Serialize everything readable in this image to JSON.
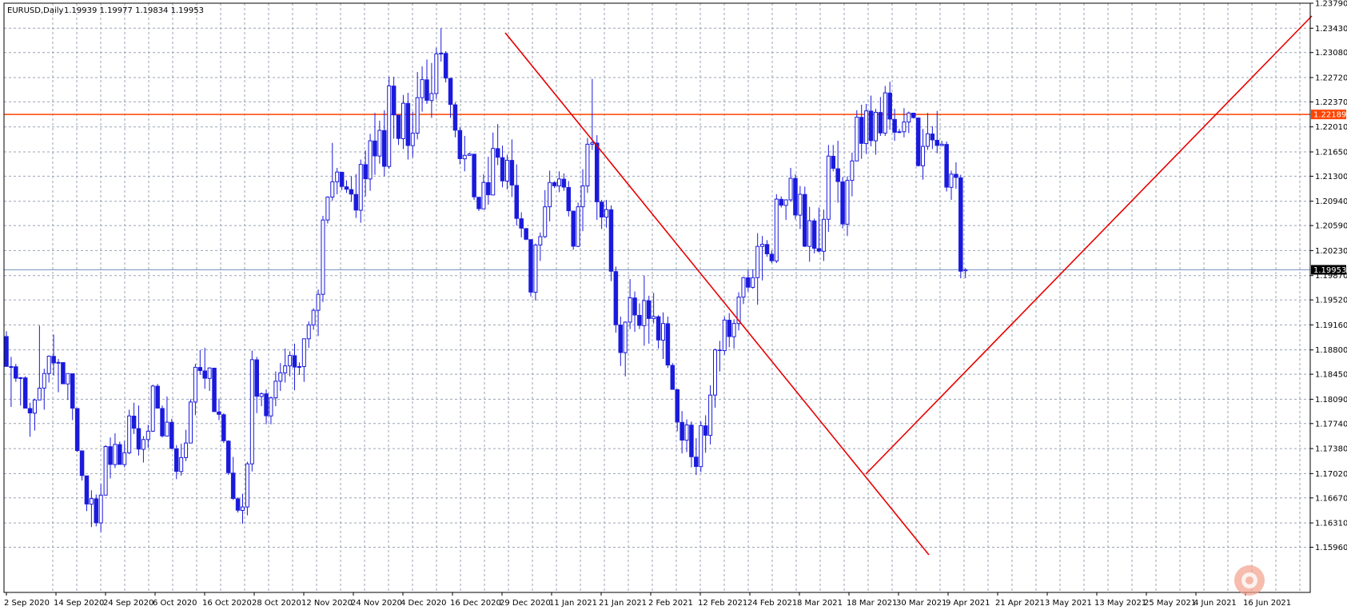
{
  "header": {
    "symbol": "EURUSD,Daily",
    "ohlc": "1.19939 1.19977 1.19834 1.19953"
  },
  "chart_data": {
    "type": "candlestick",
    "ylim": [
      1.1531,
      1.2379
    ],
    "y_ticks": [
      "1.23790",
      "1.23430",
      "1.23080",
      "1.22720",
      "1.22370",
      "1.22010",
      "1.21650",
      "1.21300",
      "1.20940",
      "1.20590",
      "1.20230",
      "1.19870",
      "1.19520",
      "1.19160",
      "1.18800",
      "1.18450",
      "1.18090",
      "1.17740",
      "1.17380",
      "1.17020",
      "1.16670",
      "1.16310",
      "1.15960"
    ],
    "x_ticks": [
      "2 Sep 2020",
      "14 Sep 2020",
      "24 Sep 2020",
      "6 Oct 2020",
      "16 Oct 2020",
      "28 Oct 2020",
      "12 Nov 2020",
      "24 Nov 2020",
      "4 Dec 2020",
      "16 Dec 2020",
      "29 Dec 2020",
      "11 Jan 2021",
      "21 Jan 2021",
      "2 Feb 2021",
      "12 Feb 2021",
      "24 Feb 2021",
      "8 Mar 2021",
      "18 Mar 2021",
      "30 Mar 2021",
      "9 Apr 2021",
      "21 Apr 2021",
      "3 May 2021",
      "13 May 2021",
      "25 May 2021",
      "4 Jun 2021",
      "16 Jun 2021"
    ],
    "current_price": "1.19953",
    "horizontal_line": {
      "price": "1.22189",
      "color": "#ff4400"
    },
    "bid_line_color": "#7a95c2",
    "candle_color": "#1a1adc",
    "trendline_color": "#e80000",
    "grid": true,
    "candles": [
      [
        1.18995,
        1.19069,
        1.1858,
        1.1856
      ],
      [
        1.1856,
        1.187,
        1.1798,
        1.1856
      ],
      [
        1.1856,
        1.186,
        1.1834,
        1.1839
      ],
      [
        1.1839,
        1.1841,
        1.18,
        1.184
      ],
      [
        1.184,
        1.1842,
        1.1796,
        1.1796
      ],
      [
        1.1796,
        1.1804,
        1.1755,
        1.1789
      ],
      [
        1.1789,
        1.181,
        1.1764,
        1.1808
      ],
      [
        1.1808,
        1.1915,
        1.1808,
        1.1825
      ],
      [
        1.1825,
        1.1853,
        1.1794,
        1.1846
      ],
      [
        1.1846,
        1.1872,
        1.1833,
        1.1871
      ],
      [
        1.1871,
        1.1902,
        1.1843,
        1.1861
      ],
      [
        1.1861,
        1.1867,
        1.1819,
        1.1862
      ],
      [
        1.1862,
        1.1862,
        1.1831,
        1.1831
      ],
      [
        1.1831,
        1.1846,
        1.1808,
        1.1846
      ],
      [
        1.1846,
        1.1846,
        1.1779,
        1.1796
      ],
      [
        1.1796,
        1.1796,
        1.1733,
        1.1735
      ],
      [
        1.1735,
        1.1735,
        1.1692,
        1.1699
      ],
      [
        1.1699,
        1.1699,
        1.1648,
        1.1658
      ],
      [
        1.1658,
        1.1678,
        1.1625,
        1.1666
      ],
      [
        1.1666,
        1.1672,
        1.1626,
        1.1631
      ],
      [
        1.1631,
        1.1687,
        1.1618,
        1.1671
      ],
      [
        1.1671,
        1.1743,
        1.1671,
        1.1741
      ],
      [
        1.1741,
        1.1754,
        1.1695,
        1.1715
      ],
      [
        1.1715,
        1.176,
        1.171,
        1.1744
      ],
      [
        1.1744,
        1.1748,
        1.1715,
        1.1715
      ],
      [
        1.1715,
        1.1749,
        1.1711,
        1.1732
      ],
      [
        1.1732,
        1.1794,
        1.173,
        1.1785
      ],
      [
        1.1785,
        1.1804,
        1.1759,
        1.1767
      ],
      [
        1.1767,
        1.18,
        1.1728,
        1.1737
      ],
      [
        1.1737,
        1.1756,
        1.1718,
        1.1751
      ],
      [
        1.1751,
        1.1772,
        1.1739,
        1.1763
      ],
      [
        1.1763,
        1.183,
        1.1762,
        1.1828
      ],
      [
        1.1828,
        1.1831,
        1.1796,
        1.1796
      ],
      [
        1.1796,
        1.18,
        1.1754,
        1.1756
      ],
      [
        1.1756,
        1.1813,
        1.1756,
        1.1776
      ],
      [
        1.1776,
        1.1781,
        1.1737,
        1.1738
      ],
      [
        1.1738,
        1.1743,
        1.1694,
        1.1705
      ],
      [
        1.1705,
        1.1745,
        1.1699,
        1.1725
      ],
      [
        1.1725,
        1.1765,
        1.172,
        1.1746
      ],
      [
        1.1746,
        1.1809,
        1.1746,
        1.1805
      ],
      [
        1.1805,
        1.186,
        1.1786,
        1.1855
      ],
      [
        1.1855,
        1.188,
        1.1844,
        1.185
      ],
      [
        1.185,
        1.1883,
        1.1824,
        1.1839
      ],
      [
        1.1839,
        1.1855,
        1.1821,
        1.1854
      ],
      [
        1.1854,
        1.1854,
        1.1791,
        1.1791
      ],
      [
        1.1791,
        1.181,
        1.1779,
        1.1787
      ],
      [
        1.1787,
        1.1789,
        1.1746,
        1.1749
      ],
      [
        1.1749,
        1.175,
        1.17,
        1.1703
      ],
      [
        1.1703,
        1.1726,
        1.1664,
        1.1666
      ],
      [
        1.1666,
        1.1668,
        1.1646,
        1.1649
      ],
      [
        1.1649,
        1.1673,
        1.163,
        1.1654
      ],
      [
        1.1654,
        1.1719,
        1.1642,
        1.1716
      ],
      [
        1.1716,
        1.1879,
        1.1705,
        1.1866
      ],
      [
        1.1866,
        1.187,
        1.1789,
        1.1813
      ],
      [
        1.1813,
        1.1819,
        1.1799,
        1.1817
      ],
      [
        1.1817,
        1.1823,
        1.1773,
        1.1785
      ],
      [
        1.1785,
        1.1813,
        1.1773,
        1.1811
      ],
      [
        1.1811,
        1.1849,
        1.1799,
        1.1835
      ],
      [
        1.1835,
        1.1861,
        1.1821,
        1.1847
      ],
      [
        1.1847,
        1.1882,
        1.1833,
        1.1857
      ],
      [
        1.1857,
        1.1878,
        1.1842,
        1.1872
      ],
      [
        1.1872,
        1.1889,
        1.1822,
        1.1855
      ],
      [
        1.1855,
        1.1862,
        1.1844,
        1.1856
      ],
      [
        1.1856,
        1.1893,
        1.1834,
        1.1896
      ],
      [
        1.1896,
        1.1921,
        1.1883,
        1.1916
      ],
      [
        1.1916,
        1.194,
        1.1909,
        1.1937
      ],
      [
        1.1937,
        1.1967,
        1.19,
        1.196
      ],
      [
        1.196,
        1.2073,
        1.1949,
        1.2067
      ],
      [
        1.2067,
        1.2101,
        1.2062,
        1.21
      ],
      [
        1.21,
        1.2178,
        1.2095,
        1.2122
      ],
      [
        1.2122,
        1.2142,
        1.2104,
        1.2136
      ],
      [
        1.2136,
        1.2136,
        1.211,
        1.2115
      ],
      [
        1.2115,
        1.2124,
        1.2106,
        1.2111
      ],
      [
        1.2111,
        1.213,
        1.2093,
        1.2104
      ],
      [
        1.2104,
        1.2133,
        1.207,
        1.2081
      ],
      [
        1.2081,
        1.2154,
        1.2063,
        1.2147
      ],
      [
        1.2147,
        1.2167,
        1.2101,
        1.2126
      ],
      [
        1.2126,
        1.2191,
        1.2109,
        1.2181
      ],
      [
        1.2181,
        1.2221,
        1.2132,
        1.2159
      ],
      [
        1.2159,
        1.221,
        1.2148,
        1.2196
      ],
      [
        1.2196,
        1.2225,
        1.213,
        1.2144
      ],
      [
        1.2144,
        1.2273,
        1.2141,
        1.226
      ],
      [
        1.226,
        1.2273,
        1.2184,
        1.2218
      ],
      [
        1.2218,
        1.2218,
        1.2175,
        1.2184
      ],
      [
        1.2184,
        1.2247,
        1.2169,
        1.2235
      ],
      [
        1.2235,
        1.225,
        1.2154,
        1.2174
      ],
      [
        1.2174,
        1.2223,
        1.2157,
        1.2192
      ],
      [
        1.2192,
        1.228,
        1.2183,
        1.2243
      ],
      [
        1.2243,
        1.2288,
        1.2223,
        1.2269
      ],
      [
        1.2269,
        1.2298,
        1.2234,
        1.2239
      ],
      [
        1.2239,
        1.2293,
        1.2214,
        1.2249
      ],
      [
        1.2249,
        1.2315,
        1.2241,
        1.2306
      ],
      [
        1.2306,
        1.2343,
        1.2295,
        1.2307
      ],
      [
        1.2307,
        1.231,
        1.2265,
        1.2271
      ],
      [
        1.2271,
        1.2271,
        1.2214,
        1.2233
      ],
      [
        1.2233,
        1.2236,
        1.2186,
        1.2196
      ],
      [
        1.2196,
        1.2201,
        1.2147,
        1.2155
      ],
      [
        1.2155,
        1.2188,
        1.2137,
        1.216
      ],
      [
        1.216,
        1.2164,
        1.2159,
        1.2162
      ],
      [
        1.2162,
        1.2162,
        1.2096,
        1.21
      ],
      [
        1.21,
        1.21,
        1.208,
        1.2083
      ],
      [
        1.2083,
        1.2133,
        1.2083,
        1.2121
      ],
      [
        1.2121,
        1.2158,
        1.2089,
        1.2103
      ],
      [
        1.2103,
        1.2193,
        1.2103,
        1.217
      ],
      [
        1.217,
        1.2205,
        1.2146,
        1.2157
      ],
      [
        1.2157,
        1.2174,
        1.2114,
        1.2123
      ],
      [
        1.2123,
        1.2161,
        1.2111,
        1.2153
      ],
      [
        1.2153,
        1.2183,
        1.21,
        1.2117
      ],
      [
        1.2117,
        1.2147,
        1.2059,
        1.2069
      ],
      [
        1.2069,
        1.2078,
        1.2042,
        1.2055
      ],
      [
        1.2055,
        1.2055,
        1.2038,
        1.2039
      ],
      [
        1.2039,
        1.2039,
        1.1957,
        1.1963
      ],
      [
        1.1963,
        1.2033,
        1.1951,
        1.2031
      ],
      [
        1.2031,
        1.2049,
        1.2008,
        1.2043
      ],
      [
        1.2043,
        1.211,
        1.2041,
        1.2086
      ],
      [
        1.2086,
        1.2138,
        1.2065,
        1.2121
      ],
      [
        1.2121,
        1.2123,
        1.2113,
        1.2116
      ],
      [
        1.2116,
        1.2137,
        1.2107,
        1.2126
      ],
      [
        1.2126,
        1.2134,
        1.2109,
        1.2114
      ],
      [
        1.2114,
        1.2123,
        1.2072,
        1.208
      ],
      [
        1.208,
        1.208,
        1.2024,
        1.2029
      ],
      [
        1.2029,
        1.2092,
        1.2028,
        1.2086
      ],
      [
        1.2086,
        1.214,
        1.2051,
        1.2116
      ],
      [
        1.2116,
        1.2185,
        1.2106,
        1.2176
      ],
      [
        1.2176,
        1.227,
        1.2168,
        1.2178
      ],
      [
        1.2178,
        1.2189,
        1.2067,
        1.2093
      ],
      [
        1.2093,
        1.2096,
        1.2054,
        1.2071
      ],
      [
        1.2071,
        1.2096,
        1.2056,
        1.2082
      ],
      [
        1.2082,
        1.2088,
        1.1979,
        1.1993
      ],
      [
        1.1993,
        1.2,
        1.1905,
        1.1916
      ],
      [
        1.1916,
        1.1928,
        1.1857,
        1.1876
      ],
      [
        1.1876,
        1.1921,
        1.1842,
        1.192
      ],
      [
        1.192,
        1.1982,
        1.191,
        1.1955
      ],
      [
        1.1955,
        1.1964,
        1.1906,
        1.193
      ],
      [
        1.193,
        1.1947,
        1.191,
        1.1915
      ],
      [
        1.1915,
        1.1987,
        1.1886,
        1.1951
      ],
      [
        1.1951,
        1.1958,
        1.1889,
        1.1925
      ],
      [
        1.1925,
        1.1962,
        1.1918,
        1.1928
      ],
      [
        1.1928,
        1.193,
        1.1882,
        1.1894
      ],
      [
        1.1894,
        1.1934,
        1.1867,
        1.1918
      ],
      [
        1.1918,
        1.1928,
        1.1854,
        1.1858
      ],
      [
        1.1858,
        1.1861,
        1.1823,
        1.1823
      ],
      [
        1.1823,
        1.1824,
        1.1763,
        1.1776
      ],
      [
        1.1776,
        1.1792,
        1.1731,
        1.175
      ],
      [
        1.175,
        1.178,
        1.1733,
        1.1772
      ],
      [
        1.1772,
        1.1777,
        1.1711,
        1.1726
      ],
      [
        1.1726,
        1.1753,
        1.17,
        1.1712
      ],
      [
        1.1712,
        1.1777,
        1.1704,
        1.1771
      ],
      [
        1.1771,
        1.1786,
        1.1732,
        1.1757
      ],
      [
        1.1757,
        1.1829,
        1.1744,
        1.1815
      ],
      [
        1.1815,
        1.1882,
        1.1797,
        1.188
      ],
      [
        1.188,
        1.1893,
        1.1849,
        1.1879
      ],
      [
        1.1879,
        1.1928,
        1.1873,
        1.1923
      ],
      [
        1.1923,
        1.1933,
        1.1884,
        1.1899
      ],
      [
        1.1899,
        1.1924,
        1.1882,
        1.1918
      ],
      [
        1.1918,
        1.1963,
        1.1908,
        1.1956
      ],
      [
        1.1956,
        1.1985,
        1.1946,
        1.1984
      ],
      [
        1.1984,
        1.1995,
        1.1964,
        1.197
      ],
      [
        1.197,
        1.1996,
        1.1968,
        1.1984
      ],
      [
        1.1984,
        1.2048,
        1.1945,
        1.2029
      ],
      [
        1.2029,
        1.2044,
        1.198,
        1.2032
      ],
      [
        1.2032,
        1.2038,
        1.2014,
        1.2018
      ],
      [
        1.2018,
        1.2023,
        1.2005,
        1.2008
      ],
      [
        1.2008,
        1.2104,
        1.2005,
        1.2097
      ],
      [
        1.2097,
        1.2101,
        1.2085,
        1.2088
      ],
      [
        1.2088,
        1.2096,
        1.2067,
        1.2096
      ],
      [
        1.2096,
        1.2142,
        1.2093,
        1.2127
      ],
      [
        1.2127,
        1.2133,
        1.2068,
        1.2074
      ],
      [
        1.2074,
        1.2116,
        1.2054,
        1.2104
      ],
      [
        1.2104,
        1.2115,
        1.2028,
        1.2029
      ],
      [
        1.2029,
        1.2086,
        1.2007,
        1.2066
      ],
      [
        1.2066,
        1.2069,
        1.2019,
        1.2026
      ],
      [
        1.2026,
        1.2085,
        1.202,
        1.2022
      ],
      [
        1.2022,
        1.2082,
        1.2008,
        1.2068
      ],
      [
        1.2068,
        1.2175,
        1.205,
        1.2159
      ],
      [
        1.2159,
        1.2175,
        1.2137,
        1.2141
      ],
      [
        1.2141,
        1.2181,
        1.2092,
        1.2122
      ],
      [
        1.2122,
        1.2129,
        1.2055,
        1.2061
      ],
      [
        1.2061,
        1.213,
        1.2044,
        1.2124
      ],
      [
        1.2124,
        1.2164,
        1.2101,
        1.2152
      ],
      [
        1.2152,
        1.2225,
        1.2152,
        1.2215
      ],
      [
        1.2215,
        1.2233,
        1.2155,
        1.2177
      ],
      [
        1.2177,
        1.2234,
        1.2162,
        1.2224
      ],
      [
        1.2224,
        1.2246,
        1.2173,
        1.2181
      ],
      [
        1.2181,
        1.2227,
        1.2161,
        1.2222
      ],
      [
        1.2222,
        1.2244,
        1.2188,
        1.2192
      ],
      [
        1.2192,
        1.226,
        1.2188,
        1.225
      ],
      [
        1.225,
        1.2266,
        1.2197,
        1.2212
      ],
      [
        1.2212,
        1.2227,
        1.2181,
        1.2193
      ],
      [
        1.2193,
        1.2198,
        1.2192,
        1.2194
      ],
      [
        1.2194,
        1.2228,
        1.2186,
        1.2208
      ],
      [
        1.2208,
        1.2223,
        1.2192,
        1.2221
      ],
      [
        1.2221,
        1.2221,
        1.2213,
        1.2214
      ],
      [
        1.2214,
        1.2214,
        1.2144,
        1.2145
      ],
      [
        1.2145,
        1.2198,
        1.2125,
        1.2173
      ],
      [
        1.2173,
        1.2221,
        1.2168,
        1.2191
      ],
      [
        1.2191,
        1.2202,
        1.2169,
        1.2182
      ],
      [
        1.2182,
        1.2224,
        1.2163,
        1.2174
      ],
      [
        1.2174,
        1.2181,
        1.2174,
        1.2176
      ],
      [
        1.2176,
        1.218,
        1.2108,
        1.2114
      ],
      [
        1.2114,
        1.2138,
        1.2096,
        1.2133
      ],
      [
        1.2133,
        1.215,
        1.2112,
        1.2128
      ],
      [
        1.2128,
        1.2132,
        1.1983,
        1.1993
      ],
      [
        1.19939,
        1.19977,
        1.19834,
        1.19953
      ]
    ]
  }
}
